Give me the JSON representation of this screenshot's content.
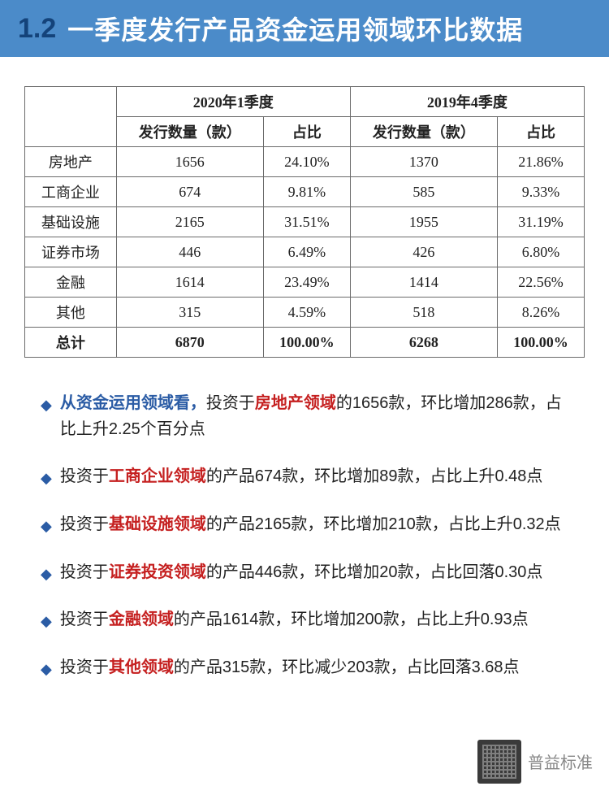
{
  "header": {
    "num": "1.2",
    "title": "一季度发行产品资金运用领域环比数据"
  },
  "table": {
    "period1": "2020年1季度",
    "period2": "2019年4季度",
    "col_count": "发行数量（款）",
    "col_share": "占比",
    "rows": [
      {
        "label": "房地产",
        "c1": "1656",
        "s1": "24.10%",
        "c2": "1370",
        "s2": "21.86%"
      },
      {
        "label": "工商企业",
        "c1": "674",
        "s1": "9.81%",
        "c2": "585",
        "s2": "9.33%"
      },
      {
        "label": "基础设施",
        "c1": "2165",
        "s1": "31.51%",
        "c2": "1955",
        "s2": "31.19%"
      },
      {
        "label": "证券市场",
        "c1": "446",
        "s1": "6.49%",
        "c2": "426",
        "s2": "6.80%"
      },
      {
        "label": "金融",
        "c1": "1614",
        "s1": "23.49%",
        "c2": "1414",
        "s2": "22.56%"
      },
      {
        "label": "其他",
        "c1": "315",
        "s1": "4.59%",
        "c2": "518",
        "s2": "8.26%"
      }
    ],
    "total": {
      "label": "总计",
      "c1": "6870",
      "s1": "100.00%",
      "c2": "6268",
      "s2": "100.00%"
    }
  },
  "bullets": [
    {
      "lead": "从资金运用领域看，",
      "pre": "投资于",
      "red": "房地产领域",
      "post": "的1656款，环比增加286款，占比上升2.25个百分点"
    },
    {
      "lead": "",
      "pre": "投资于",
      "red": "工商企业领域",
      "post": "的产品674款，环比增加89款，占比上升0.48点"
    },
    {
      "lead": "",
      "pre": "投资于",
      "red": "基础设施领域",
      "post": "的产品2165款，环比增加210款，占比上升0.32点"
    },
    {
      "lead": "",
      "pre": "投资于",
      "red": "证券投资领域",
      "post": "的产品446款，环比增加20款，占比回落0.30点"
    },
    {
      "lead": "",
      "pre": "投资于",
      "red": "金融领域",
      "post": "的产品1614款，环比增加200款，占比上升0.93点"
    },
    {
      "lead": "",
      "pre": "投资于",
      "red": "其他领域",
      "post": "的产品315款，环比减少203款，占比回落3.68点"
    }
  ],
  "footer": {
    "brand": "普益标准"
  },
  "style": {
    "header_bg": "#4b8bc9",
    "header_num_color": "#14437a",
    "header_title_color": "#ffffff",
    "border_color": "#6b6b6b",
    "diamond_color": "#2b5ca5",
    "red_color": "#c52020",
    "footer_color": "#888888"
  }
}
